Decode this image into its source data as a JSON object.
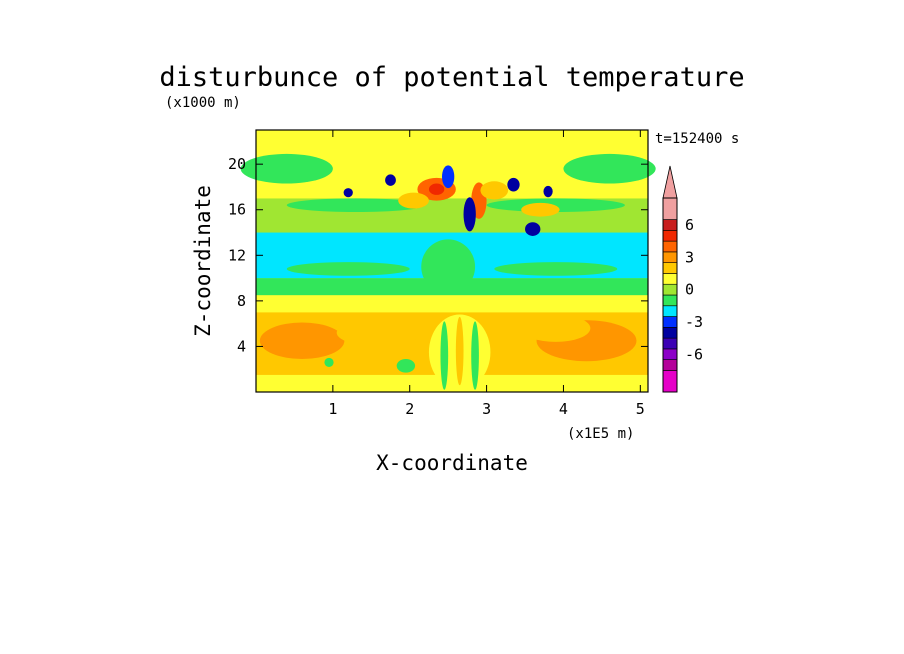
{
  "chart_data": {
    "type": "heatmap",
    "title": "disturbunce of potential temperature",
    "time_label": "t=152400 s",
    "x_axis": {
      "label": "X-coordinate",
      "unit_label": "(x1E5 m)",
      "ticks": [
        1,
        2,
        3,
        4,
        5
      ],
      "range": [
        0,
        5.1
      ]
    },
    "z_axis": {
      "label": "Z-coordinate",
      "unit_label": "(x1000 m)",
      "ticks": [
        4,
        8,
        12,
        16,
        20
      ],
      "range": [
        0,
        23
      ]
    },
    "colorbar": {
      "extend_max": true,
      "tick_labels": [
        {
          "value": 6,
          "text": "6"
        },
        {
          "value": 3,
          "text": "3"
        },
        {
          "value": 0,
          "text": "0"
        },
        {
          "value": -3,
          "text": "-3"
        },
        {
          "value": -6,
          "text": "-6"
        }
      ],
      "levels": [
        {
          "lower": -9,
          "upper": -7,
          "color": "#e600c8"
        },
        {
          "lower": -7,
          "upper": -6,
          "color": "#b4009a"
        },
        {
          "lower": -6,
          "upper": -5,
          "color": "#8c00c8"
        },
        {
          "lower": -5,
          "upper": -4,
          "color": "#3c00b4"
        },
        {
          "lower": -4,
          "upper": -3,
          "color": "#0000a0"
        },
        {
          "lower": -3,
          "upper": -2,
          "color": "#0030ff"
        },
        {
          "lower": -2,
          "upper": -1,
          "color": "#00e6ff"
        },
        {
          "lower": -1,
          "upper": 0,
          "color": "#32e65a"
        },
        {
          "lower": 0,
          "upper": 1,
          "color": "#a0e632"
        },
        {
          "lower": 1,
          "upper": 2,
          "color": "#ffff32"
        },
        {
          "lower": 2,
          "upper": 3,
          "color": "#ffc800"
        },
        {
          "lower": 3,
          "upper": 4,
          "color": "#ff9600"
        },
        {
          "lower": 4,
          "upper": 5,
          "color": "#ff6400"
        },
        {
          "lower": 5,
          "upper": 6,
          "color": "#f02800"
        },
        {
          "lower": 6,
          "upper": 7,
          "color": "#c81e1e"
        },
        {
          "lower": 7,
          "upper": 9,
          "color": "#f0a0a0"
        }
      ],
      "extension_color": "#f0a0a0"
    },
    "field_description": {
      "background_value": 1.5,
      "layers": [
        {
          "z_range": [
            0,
            1.5
          ],
          "value": 1.5
        },
        {
          "z_range": [
            1.5,
            7
          ],
          "value": 2.5
        },
        {
          "z_range": [
            7,
            8.5
          ],
          "value": 1.5
        },
        {
          "z_range": [
            8.5,
            10
          ],
          "value": -0.5
        },
        {
          "z_range": [
            10,
            14
          ],
          "value": -1.5
        },
        {
          "z_range": [
            14,
            17
          ],
          "value": 0.5
        },
        {
          "z_range": [
            17,
            23
          ],
          "value": 1.0
        }
      ]
    }
  }
}
